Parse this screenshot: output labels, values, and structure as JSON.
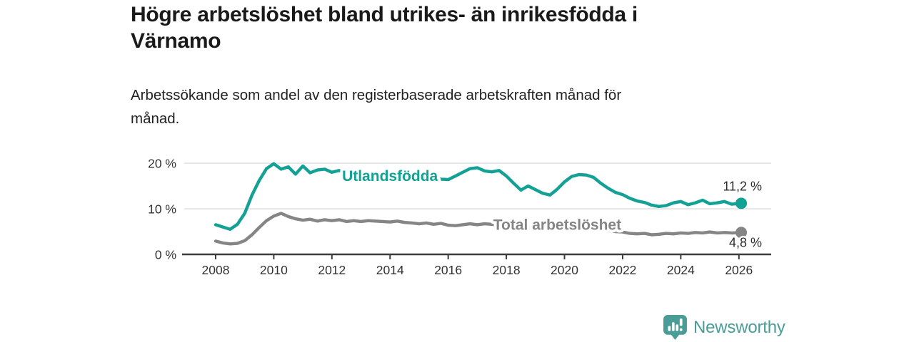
{
  "title": {
    "line1": "Högre arbetslöshet bland utrikes- än inrikesfödda i",
    "line2": "Värnamo"
  },
  "subtitle": {
    "line1": "Arbetssökande som andel av den registerbaserade arbetskraften månad för",
    "line2": "månad."
  },
  "chart_data": {
    "type": "line",
    "title": "",
    "xlabel": "",
    "ylabel": "",
    "grid": "horizontal",
    "xlim": [
      2006.92,
      2027.11
    ],
    "ylim": [
      0,
      21.1
    ],
    "x_ticks": [
      2008,
      2010,
      2012,
      2014,
      2016,
      2018,
      2020,
      2022,
      2024,
      2026
    ],
    "y_ticks": [
      {
        "v": 0,
        "label": "0 %"
      },
      {
        "v": 10,
        "label": "10 %"
      },
      {
        "v": 20,
        "label": "20 %"
      }
    ],
    "x": [
      2008,
      2008.25,
      2008.5,
      2008.75,
      2009,
      2009.25,
      2009.5,
      2009.75,
      2010,
      2010.25,
      2010.5,
      2010.75,
      2011,
      2011.25,
      2011.5,
      2011.75,
      2012,
      2012.25,
      2012.5,
      2012.75,
      2013,
      2013.25,
      2013.5,
      2013.75,
      2014,
      2014.25,
      2014.5,
      2014.75,
      2015,
      2015.25,
      2015.5,
      2015.75,
      2016,
      2016.25,
      2016.5,
      2016.75,
      2017,
      2017.25,
      2017.5,
      2017.75,
      2018,
      2018.25,
      2018.5,
      2018.75,
      2019,
      2019.25,
      2019.5,
      2019.75,
      2020,
      2020.25,
      2020.5,
      2020.75,
      2021,
      2021.25,
      2021.5,
      2021.75,
      2022,
      2022.25,
      2022.5,
      2022.75,
      2023,
      2023.25,
      2023.5,
      2023.75,
      2024,
      2024.25,
      2024.5,
      2024.75,
      2025,
      2025.25,
      2025.5,
      2025.75,
      2026.08
    ],
    "series": [
      {
        "name": "Utlandsfödda",
        "color": "#12A194",
        "end_label": "11,2 %",
        "values": [
          6.5,
          6.0,
          5.5,
          6.6,
          9.0,
          13.0,
          16.2,
          18.8,
          19.9,
          18.7,
          19.2,
          17.6,
          19.4,
          17.9,
          18.5,
          18.7,
          18.0,
          18.4,
          17.9,
          17.7,
          17.6,
          17.5,
          17.6,
          17.4,
          17.3,
          17.2,
          17.1,
          17.0,
          16.9,
          16.8,
          16.7,
          16.5,
          16.4,
          17.2,
          18.0,
          18.8,
          19.0,
          18.3,
          18.1,
          18.4,
          17.2,
          15.6,
          14.1,
          15.0,
          14.2,
          13.4,
          13.0,
          14.3,
          15.9,
          17.1,
          17.5,
          17.4,
          16.9,
          15.6,
          14.5,
          13.6,
          13.1,
          12.3,
          11.7,
          11.4,
          10.8,
          10.5,
          10.7,
          11.3,
          11.6,
          10.9,
          11.3,
          11.9,
          11.1,
          11.3,
          11.6,
          11.0,
          11.2
        ]
      },
      {
        "name": "Total arbetslöshet",
        "color": "#858585",
        "end_label": "4,8 %",
        "values": [
          2.9,
          2.5,
          2.3,
          2.4,
          3.0,
          4.3,
          5.9,
          7.4,
          8.4,
          9.0,
          8.3,
          7.8,
          7.5,
          7.7,
          7.3,
          7.6,
          7.4,
          7.6,
          7.2,
          7.4,
          7.2,
          7.4,
          7.3,
          7.2,
          7.1,
          7.3,
          7.0,
          6.9,
          6.7,
          6.9,
          6.6,
          6.8,
          6.4,
          6.3,
          6.5,
          6.7,
          6.5,
          6.7,
          6.6,
          6.4,
          6.3,
          6.1,
          6.0,
          5.9,
          5.8,
          5.7,
          5.6,
          5.7,
          6.1,
          6.3,
          6.0,
          5.8,
          5.6,
          5.4,
          5.2,
          5.0,
          4.9,
          4.6,
          4.5,
          4.6,
          4.3,
          4.4,
          4.6,
          4.5,
          4.7,
          4.6,
          4.8,
          4.7,
          4.9,
          4.7,
          4.8,
          4.7,
          4.8
        ]
      }
    ],
    "series_labels": [
      {
        "text": "Utlandsfödda",
        "x": 2012.35,
        "v": 17.3,
        "color": "#12A194"
      },
      {
        "text": "Total arbetslöshet",
        "x": 2017.55,
        "v": 6.6,
        "color": "#858585"
      }
    ]
  },
  "branding": {
    "logo_text": "Newsworthy",
    "color": "#4A9D96",
    "icon": "bar-chart-bubble-icon"
  },
  "colors": {
    "axis_text": "#333333",
    "axis_line": "#3C3C3C",
    "gridline": "#DCDCDC",
    "value_label": "#2B2B2B"
  }
}
